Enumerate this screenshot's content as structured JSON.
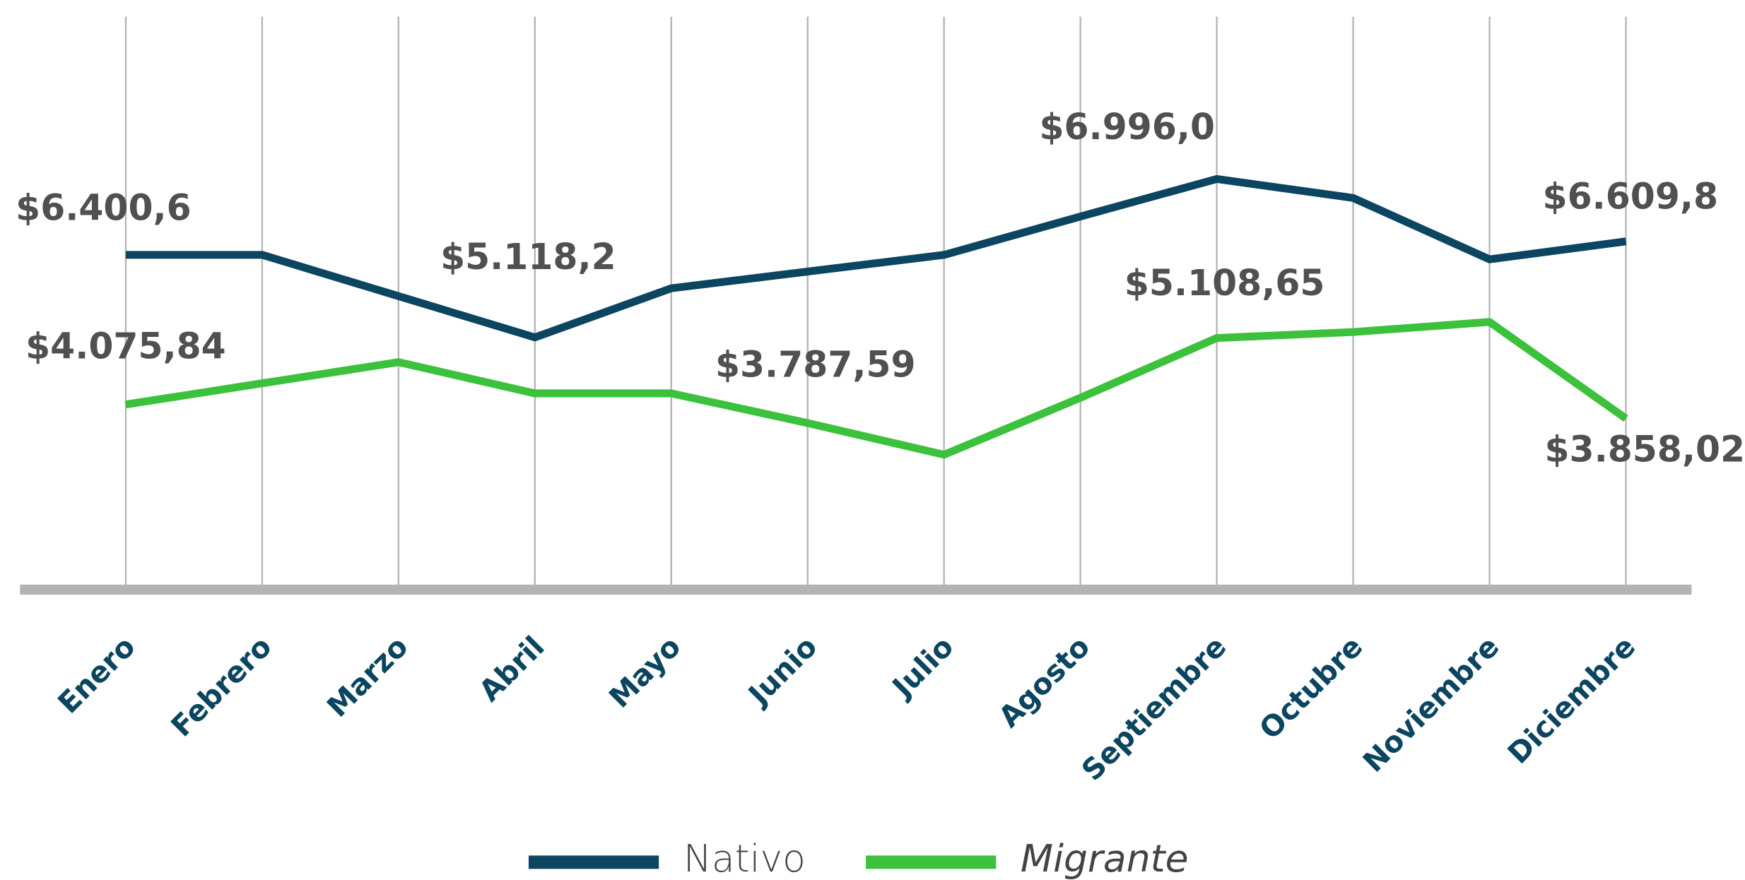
{
  "chart_data": {
    "type": "line",
    "categories": [
      "Enero",
      "Febrero",
      "Marzo",
      "Abril",
      "Mayo",
      "Junio",
      "Julio",
      "Agosto",
      "Septiembre",
      "Octubre",
      "Noviembre",
      "Diciembre"
    ],
    "series": [
      {
        "name": "Nativo",
        "color": "#0b4560",
        "values": [
          6400.6,
          6400.6,
          5759,
          5118.2,
          5881,
          6141,
          6400,
          6996.0,
          7579,
          7284,
          6331,
          6609.8
        ],
        "value_labels": [
          "$6.400,6",
          null,
          null,
          "$5.118,2",
          null,
          null,
          null,
          "$6.996,0",
          null,
          null,
          null,
          "$6.609,8"
        ]
      },
      {
        "name": "Migrante",
        "color": "#3cc13c",
        "values": [
          4075.84,
          4405,
          4734,
          4249,
          4249,
          3787.59,
          3296,
          4180,
          5108.65,
          5202,
          5358,
          3858.02
        ],
        "value_labels": [
          "$4.075,84",
          null,
          null,
          null,
          null,
          "$3.787,59",
          null,
          null,
          "$5.108,65",
          null,
          null,
          "$3.858,02"
        ]
      }
    ],
    "ylim": [
      1200,
      10100
    ],
    "grid": true,
    "legend": "bottom"
  }
}
